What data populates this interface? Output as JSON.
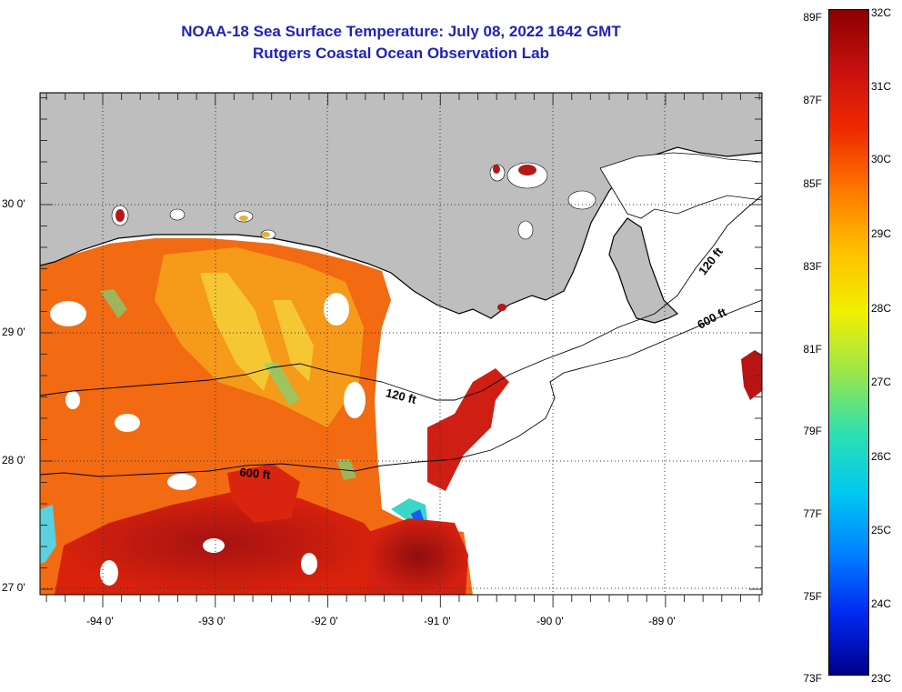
{
  "title_line1": "NOAA-18 Sea Surface Temperature:  July 08, 2022 1642 GMT",
  "title_line2": "Rutgers Coastal Ocean Observation Lab",
  "lat_labels": [
    "30 0'",
    "29 0'",
    "28 0'",
    "27 0'"
  ],
  "lon_labels": [
    "-94 0'",
    "-93 0'",
    "-92 0'",
    "-91 0'",
    "-90 0'",
    "-89 0'"
  ],
  "contour_labels": {
    "c120_east": "120 ft",
    "c600_east": "600 ft",
    "c120_mid": "120 ft",
    "c600_mid": "600 ft"
  },
  "colorbar": {
    "fahrenheit": [
      "89F",
      "87F",
      "85F",
      "83F",
      "81F",
      "79F",
      "77F",
      "75F",
      "73F"
    ],
    "celsius": [
      "32C",
      "31C",
      "30C",
      "29C",
      "28C",
      "27C",
      "26C",
      "25C",
      "24C",
      "23C"
    ],
    "colors": [
      "#8b0000",
      "#c81010",
      "#f02a00",
      "#ff7a00",
      "#ffc000",
      "#f0f000",
      "#9be64a",
      "#2ee0b0",
      "#00c8f0",
      "#0080ff",
      "#0028f0",
      "#00008b"
    ]
  },
  "colors": {
    "land": "#bebebe",
    "title": "#1f22b8",
    "no_data": "#ffffff"
  }
}
